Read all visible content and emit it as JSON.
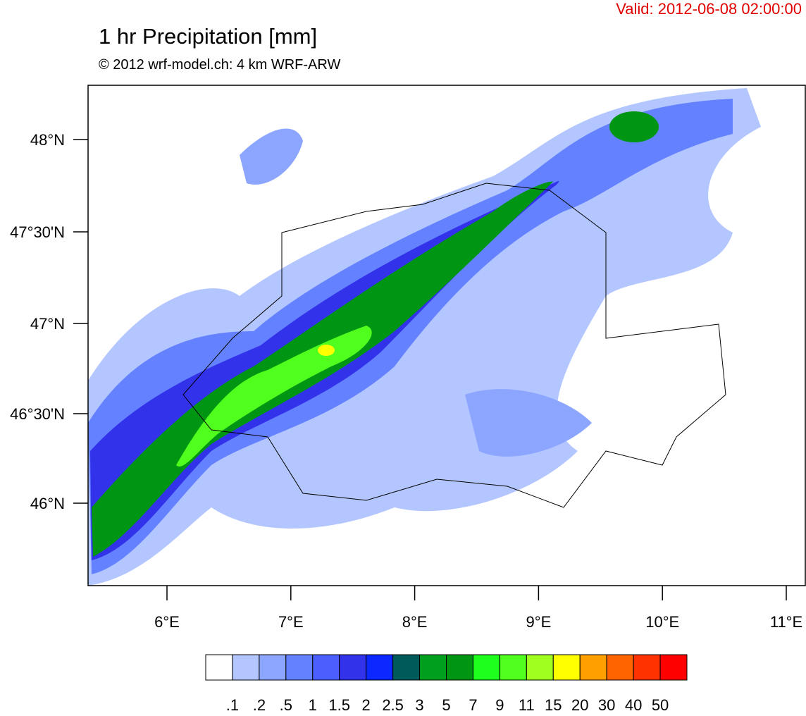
{
  "header": {
    "valid": "Valid: 2012-06-08 02:00:00",
    "title": "1 hr Precipitation [mm]",
    "subtitle": "© 2012 wrf-model.ch: 4 km WRF-ARW"
  },
  "map": {
    "lat_labels": [
      "48°N",
      "47°30'N",
      "47°N",
      "46°30'N",
      "46°N"
    ],
    "lon_labels": [
      "6°E",
      "7°E",
      "8°E",
      "9°E",
      "10°E",
      "11°E"
    ]
  },
  "colorbar": {
    "colors": [
      "#ffffff",
      "#b4c6ff",
      "#8ca5ff",
      "#6482ff",
      "#4b5fff",
      "#3232eb",
      "#0a28ff",
      "#005a5a",
      "#00a01e",
      "#009614",
      "#1eff1e",
      "#50ff1e",
      "#a0ff1e",
      "#ffff00",
      "#ffa000",
      "#ff6400",
      "#ff3200",
      "#ff0000"
    ],
    "labels": [
      ".1",
      ".2",
      ".5",
      "1",
      "1.5",
      "2",
      "2.5",
      "3",
      "5",
      "7",
      "9",
      "11",
      "15",
      "20",
      "30",
      "40",
      "50"
    ]
  }
}
